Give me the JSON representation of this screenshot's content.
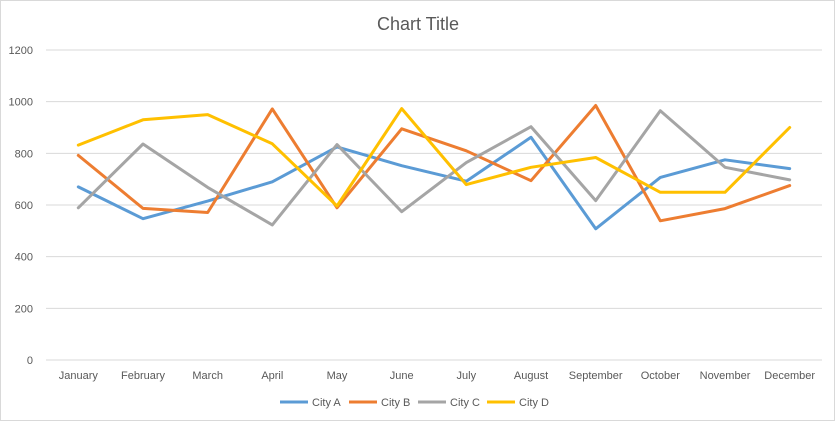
{
  "chart_data": {
    "type": "line",
    "title": "Chart Title",
    "categories": [
      "January",
      "February",
      "March",
      "April",
      "May",
      "June",
      "July",
      "August",
      "September",
      "October",
      "November",
      "December"
    ],
    "y_ticks": [
      "0",
      "200",
      "400",
      "600",
      "800",
      "1000",
      "1200"
    ],
    "ylim": [
      0,
      1200
    ],
    "grid": true,
    "legend_position": "bottom",
    "series": [
      {
        "name": "City A",
        "color": "#5B9BD5",
        "values": [
          670,
          547,
          615,
          690,
          825,
          752,
          692,
          862,
          508,
          707,
          775,
          741
        ]
      },
      {
        "name": "City B",
        "color": "#ED7D31",
        "values": [
          792,
          587,
          571,
          972,
          589,
          895,
          810,
          694,
          985,
          539,
          586,
          675
        ]
      },
      {
        "name": "City C",
        "color": "#A5A5A5",
        "values": [
          589,
          836,
          668,
          523,
          834,
          574,
          764,
          903,
          617,
          965,
          746,
          697
        ]
      },
      {
        "name": "City D",
        "color": "#FFC000",
        "values": [
          832,
          930,
          950,
          837,
          596,
          973,
          679,
          746,
          784,
          649,
          649,
          900
        ]
      }
    ]
  }
}
